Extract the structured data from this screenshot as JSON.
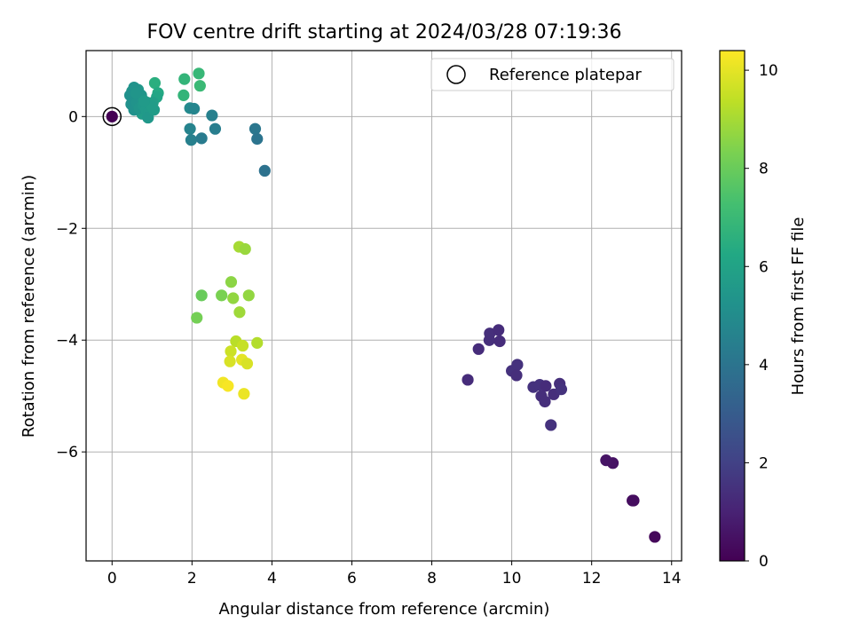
{
  "chart_data": {
    "type": "scatter",
    "title": "FOV centre drift starting at 2024/03/28 07:19:36",
    "xlabel": "Angular distance from reference (arcmin)",
    "ylabel": "Rotation from reference (arcmin)",
    "xlim": [
      -0.65,
      14.25
    ],
    "ylim": [
      -7.95,
      1.18
    ],
    "xticks": [
      0,
      2,
      4,
      6,
      8,
      10,
      12,
      14
    ],
    "xtick_labels": [
      "0",
      "2",
      "4",
      "6",
      "8",
      "10",
      "12",
      "14"
    ],
    "yticks": [
      0,
      -2,
      -4,
      -6
    ],
    "ytick_labels": [
      "0",
      "−2",
      "−4",
      "−6"
    ],
    "grid": true,
    "legend": {
      "position": "top-right",
      "label": "Reference platepar"
    },
    "colorbar": {
      "label": "Hours from first FF file",
      "colormap": "viridis",
      "range": [
        0,
        10.4
      ],
      "ticks": [
        0,
        2,
        4,
        6,
        8,
        10
      ],
      "tick_labels": [
        "0",
        "2",
        "4",
        "6",
        "8",
        "10"
      ]
    },
    "reference_point": {
      "x": 0,
      "y": 0,
      "h": 0
    },
    "points": [
      {
        "x": 13.58,
        "y": -7.52,
        "h": 0.2
      },
      {
        "x": 13.05,
        "y": -6.87,
        "h": 0.3
      },
      {
        "x": 13.02,
        "y": -6.87,
        "h": 0.35
      },
      {
        "x": 12.53,
        "y": -6.2,
        "h": 0.5
      },
      {
        "x": 12.36,
        "y": -6.15,
        "h": 0.55
      },
      {
        "x": 8.9,
        "y": -4.71,
        "h": 1.3
      },
      {
        "x": 9.17,
        "y": -4.16,
        "h": 1.3
      },
      {
        "x": 9.44,
        "y": -4.0,
        "h": 1.4
      },
      {
        "x": 9.45,
        "y": -3.88,
        "h": 1.4
      },
      {
        "x": 9.67,
        "y": -3.82,
        "h": 1.3
      },
      {
        "x": 9.7,
        "y": -4.02,
        "h": 1.3
      },
      {
        "x": 10.0,
        "y": -4.55,
        "h": 1.5
      },
      {
        "x": 10.14,
        "y": -4.44,
        "h": 1.5
      },
      {
        "x": 10.12,
        "y": -4.63,
        "h": 1.4
      },
      {
        "x": 10.54,
        "y": -4.84,
        "h": 1.5
      },
      {
        "x": 10.7,
        "y": -4.8,
        "h": 1.5
      },
      {
        "x": 10.74,
        "y": -5.0,
        "h": 1.4
      },
      {
        "x": 10.85,
        "y": -4.82,
        "h": 1.3
      },
      {
        "x": 10.83,
        "y": -5.1,
        "h": 1.4
      },
      {
        "x": 11.05,
        "y": -4.97,
        "h": 1.4
      },
      {
        "x": 11.2,
        "y": -4.78,
        "h": 1.4
      },
      {
        "x": 11.24,
        "y": -4.88,
        "h": 1.5
      },
      {
        "x": 10.98,
        "y": -5.52,
        "h": 1.5
      },
      {
        "x": 1.81,
        "y": 0.67,
        "h": 6.8
      },
      {
        "x": 2.17,
        "y": 0.77,
        "h": 6.9
      },
      {
        "x": 2.2,
        "y": 0.55,
        "h": 7.0
      },
      {
        "x": 1.79,
        "y": 0.38,
        "h": 6.8
      },
      {
        "x": 1.07,
        "y": 0.6,
        "h": 6.5
      },
      {
        "x": 1.15,
        "y": 0.42,
        "h": 6.3
      },
      {
        "x": 1.12,
        "y": 0.35,
        "h": 6.1
      },
      {
        "x": 0.95,
        "y": 0.2,
        "h": 6.0
      },
      {
        "x": 0.88,
        "y": 0.25,
        "h": 5.9
      },
      {
        "x": 0.82,
        "y": 0.1,
        "h": 5.8
      },
      {
        "x": 0.75,
        "y": 0.05,
        "h": 5.7
      },
      {
        "x": 0.7,
        "y": 0.32,
        "h": 5.6
      },
      {
        "x": 0.65,
        "y": 0.48,
        "h": 5.5
      },
      {
        "x": 0.55,
        "y": 0.52,
        "h": 5.3
      },
      {
        "x": 0.5,
        "y": 0.45,
        "h": 5.3
      },
      {
        "x": 0.45,
        "y": 0.38,
        "h": 5.2
      },
      {
        "x": 0.48,
        "y": 0.22,
        "h": 5.2
      },
      {
        "x": 0.55,
        "y": 0.12,
        "h": 5.2
      },
      {
        "x": 0.62,
        "y": 0.25,
        "h": 5.3
      },
      {
        "x": 0.68,
        "y": 0.15,
        "h": 5.4
      },
      {
        "x": 0.73,
        "y": 0.38,
        "h": 5.4
      },
      {
        "x": 0.78,
        "y": 0.2,
        "h": 5.5
      },
      {
        "x": 0.85,
        "y": 0.12,
        "h": 5.6
      },
      {
        "x": 0.92,
        "y": 0.08,
        "h": 5.6
      },
      {
        "x": 0.9,
        "y": -0.02,
        "h": 5.5
      },
      {
        "x": 1.02,
        "y": 0.25,
        "h": 5.8
      },
      {
        "x": 1.05,
        "y": 0.12,
        "h": 5.7
      },
      {
        "x": 1.0,
        "y": 0.18,
        "h": 5.7
      },
      {
        "x": 0.8,
        "y": 0.28,
        "h": 5.6
      },
      {
        "x": 0.6,
        "y": 0.42,
        "h": 5.4
      },
      {
        "x": 1.95,
        "y": 0.15,
        "h": 4.9
      },
      {
        "x": 2.05,
        "y": 0.14,
        "h": 4.7
      },
      {
        "x": 1.95,
        "y": -0.22,
        "h": 4.6
      },
      {
        "x": 1.98,
        "y": -0.42,
        "h": 4.5
      },
      {
        "x": 2.24,
        "y": -0.39,
        "h": 4.3
      },
      {
        "x": 2.5,
        "y": 0.02,
        "h": 4.5
      },
      {
        "x": 2.58,
        "y": -0.22,
        "h": 4.4
      },
      {
        "x": 3.58,
        "y": -0.22,
        "h": 4.1
      },
      {
        "x": 3.63,
        "y": -0.4,
        "h": 4.0
      },
      {
        "x": 3.82,
        "y": -0.97,
        "h": 3.9
      },
      {
        "x": 3.18,
        "y": -2.33,
        "h": 9.0
      },
      {
        "x": 3.33,
        "y": -2.37,
        "h": 8.8
      },
      {
        "x": 2.24,
        "y": -3.2,
        "h": 8.0
      },
      {
        "x": 2.98,
        "y": -2.96,
        "h": 8.6
      },
      {
        "x": 2.74,
        "y": -3.2,
        "h": 8.3
      },
      {
        "x": 3.42,
        "y": -3.2,
        "h": 8.7
      },
      {
        "x": 3.03,
        "y": -3.25,
        "h": 8.7
      },
      {
        "x": 3.19,
        "y": -3.5,
        "h": 8.9
      },
      {
        "x": 2.12,
        "y": -3.6,
        "h": 8.2
      },
      {
        "x": 3.63,
        "y": -4.05,
        "h": 9.2
      },
      {
        "x": 3.1,
        "y": -4.02,
        "h": 9.3
      },
      {
        "x": 3.27,
        "y": -4.1,
        "h": 9.5
      },
      {
        "x": 2.97,
        "y": -4.2,
        "h": 9.6
      },
      {
        "x": 2.95,
        "y": -4.38,
        "h": 9.8
      },
      {
        "x": 3.25,
        "y": -4.35,
        "h": 10.0
      },
      {
        "x": 3.38,
        "y": -4.42,
        "h": 9.8
      },
      {
        "x": 2.78,
        "y": -4.76,
        "h": 10.2
      },
      {
        "x": 2.9,
        "y": -4.82,
        "h": 10.3
      },
      {
        "x": 3.3,
        "y": -4.96,
        "h": 10.1
      },
      {
        "x": 0.0,
        "y": 0.0,
        "h": 0.0
      }
    ]
  }
}
